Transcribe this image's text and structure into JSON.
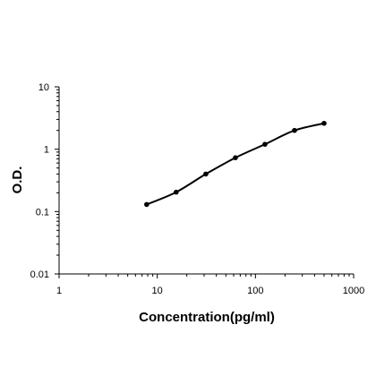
{
  "chart_data": {
    "type": "scatter",
    "title": "",
    "xlabel": "Concentration(pg/ml)",
    "ylabel": "O.D.",
    "x_scale": "log",
    "y_scale": "log",
    "xlim": [
      1,
      1000
    ],
    "ylim": [
      0.01,
      10
    ],
    "x_ticks": [
      1,
      10,
      100,
      1000
    ],
    "x_tick_labels": [
      "1",
      "10",
      "100",
      "1000"
    ],
    "y_ticks": [
      0.01,
      0.1,
      1,
      10
    ],
    "y_tick_labels": [
      "0.01",
      "0.1",
      "1",
      "10"
    ],
    "grid": false,
    "legend": "none",
    "series": [
      {
        "points": [
          {
            "x": 7.8,
            "y": 0.13
          },
          {
            "x": 15.6,
            "y": 0.205
          },
          {
            "x": 31.25,
            "y": 0.4
          },
          {
            "x": 62.5,
            "y": 0.73
          },
          {
            "x": 125,
            "y": 1.2
          },
          {
            "x": 250,
            "y": 2.0
          },
          {
            "x": 500,
            "y": 2.6
          }
        ],
        "fit_curve": true,
        "color": "#000000"
      }
    ]
  }
}
